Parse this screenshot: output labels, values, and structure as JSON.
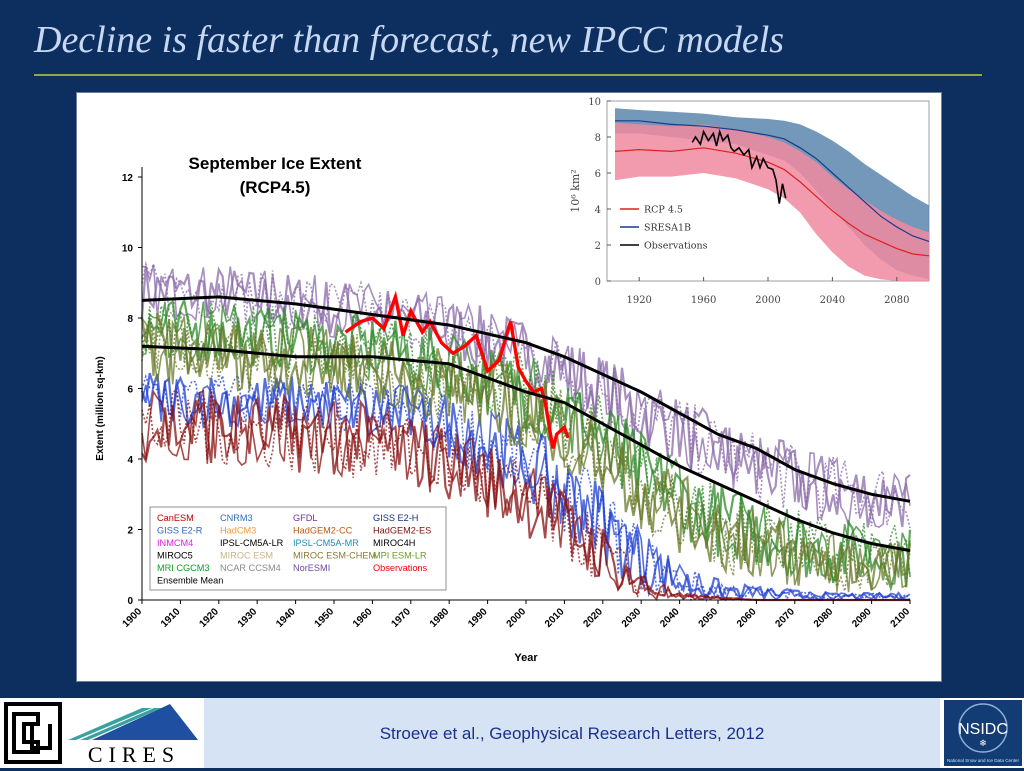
{
  "slide": {
    "title": "Decline is faster than forecast, new IPCC models",
    "citation": "Stroeve et al., Geophysical Research Letters, 2012"
  },
  "logos": {
    "cu": "CU",
    "cires": "CIRES",
    "nsidc": "NSIDC",
    "nsidc_subtitle": "National Snow and Ice Data Center"
  },
  "colors": {
    "background": "#0c2f60",
    "title": "#c8d8f2",
    "rule": "#8fa64a",
    "citation": "#1a2f8c",
    "observations": "#ff0000",
    "ensemble": "#000000"
  },
  "chart_data": [
    {
      "type": "line",
      "title": "September Ice Extent\n(RCP4.5)",
      "xlabel": "Year",
      "ylabel": "Extent (million sq-km)",
      "xlim": [
        1900,
        2100
      ],
      "ylim": [
        0,
        12
      ],
      "xticks": [
        1900,
        1910,
        1920,
        1930,
        1940,
        1950,
        1960,
        1970,
        1980,
        1990,
        2000,
        2010,
        2020,
        2030,
        2040,
        2050,
        2060,
        2070,
        2080,
        2090,
        2100
      ],
      "yticks": [
        0,
        2,
        4,
        6,
        8,
        10,
        12
      ],
      "grid": false,
      "legend_position": "bottom-left",
      "legend": [
        {
          "name": "CanESM",
          "color": "#c00000"
        },
        {
          "name": "CNRM3",
          "color": "#2f6fc0"
        },
        {
          "name": "GFDL",
          "color": "#7a2ea0"
        },
        {
          "name": "GISS E2-H",
          "color": "#1c2f7a"
        },
        {
          "name": "GISS E2-R",
          "color": "#2a5fd0"
        },
        {
          "name": "HadCM3",
          "color": "#f39a3a"
        },
        {
          "name": "HadGEM2-CC",
          "color": "#c05a10"
        },
        {
          "name": "HadGEM2-ES",
          "color": "#7a1010"
        },
        {
          "name": "INMCM4",
          "color": "#e020e0"
        },
        {
          "name": "IPSL-CM5A-LR",
          "color": "#000000"
        },
        {
          "name": "IPSL-CM5A-MR",
          "color": "#1f8fb0"
        },
        {
          "name": "MIROC4H",
          "color": "#000000"
        },
        {
          "name": "MIROC5",
          "color": "#000000"
        },
        {
          "name": "MIROC ESM",
          "color": "#c8b48a"
        },
        {
          "name": "MIROC ESM-CHEM",
          "color": "#8a7a3a"
        },
        {
          "name": "MPI ESM-LR",
          "color": "#6a9a2a"
        },
        {
          "name": "MRI CGCM3",
          "color": "#10a020"
        },
        {
          "name": "NCAR CCSM4",
          "color": "#8a8a8a"
        },
        {
          "name": "NorESMI",
          "color": "#6a4aa0"
        },
        {
          "name": "Observations",
          "color": "#ff0000"
        },
        {
          "name": "Ensemble Mean",
          "color": "#000000"
        }
      ],
      "series": [
        {
          "name": "Observations",
          "color": "#ff0000",
          "x": [
            1953,
            1957,
            1960,
            1963,
            1966,
            1968,
            1970,
            1973,
            1975,
            1978,
            1981,
            1984,
            1987,
            1990,
            1993,
            1996,
            1998,
            2000,
            2002,
            2004,
            2005,
            2007,
            2008,
            2010,
            2011
          ],
          "y": [
            7.6,
            7.9,
            8.0,
            7.7,
            8.6,
            7.5,
            8.2,
            7.6,
            7.9,
            7.3,
            7.0,
            7.2,
            7.5,
            6.5,
            6.8,
            7.9,
            6.6,
            6.2,
            5.9,
            6.0,
            5.6,
            4.3,
            4.7,
            4.9,
            4.6
          ]
        },
        {
          "name": "Ensemble Mean",
          "color": "#000000",
          "x": [
            1900,
            1920,
            1940,
            1960,
            1980,
            2000,
            2010,
            2020,
            2030,
            2040,
            2050,
            2060,
            2070,
            2080,
            2090,
            2100
          ],
          "y": [
            7.2,
            7.1,
            6.9,
            6.9,
            6.7,
            5.9,
            5.6,
            5.0,
            4.4,
            3.8,
            3.3,
            2.8,
            2.3,
            1.9,
            1.6,
            1.4
          ]
        },
        {
          "name": "Ensemble Mean",
          "color": "#000000",
          "x": [
            1900,
            1920,
            1940,
            1960,
            1980,
            2000,
            2010,
            2020,
            2030,
            2040,
            2050,
            2060,
            2070,
            2080,
            2090,
            2100
          ],
          "y": [
            8.5,
            8.6,
            8.4,
            8.1,
            7.8,
            7.3,
            6.9,
            6.4,
            5.9,
            5.3,
            4.7,
            4.3,
            3.7,
            3.3,
            3.0,
            2.8
          ]
        }
      ],
      "spread_bands": [
        {
          "color": "#8a6aa8",
          "upper": [
            9.6,
            9.5,
            9.3,
            9.0,
            8.6,
            8.0,
            7.0,
            6.3,
            5.8,
            5.2,
            4.8,
            4.4,
            4.1,
            3.9
          ],
          "lower": [
            8.0,
            7.9,
            7.6,
            7.3,
            6.8,
            6.0,
            5.0,
            4.3,
            3.8,
            3.2,
            2.8,
            2.4,
            2.1,
            1.9
          ]
        },
        {
          "color": "#2f8a2a",
          "upper": [
            8.6,
            8.5,
            8.3,
            8.1,
            7.6,
            7.0,
            5.8,
            4.8,
            4.0,
            3.4,
            3.0,
            2.6,
            2.3,
            2.1
          ],
          "lower": [
            6.8,
            6.7,
            6.5,
            6.2,
            5.7,
            4.8,
            3.6,
            2.6,
            1.8,
            1.2,
            0.9,
            0.6,
            0.4,
            0.3
          ]
        },
        {
          "color": "#2040d0",
          "upper": [
            6.6,
            6.5,
            6.4,
            6.3,
            5.9,
            5.0,
            3.4,
            2.0,
            1.0,
            0.6,
            0.4,
            0.3,
            0.2,
            0.2
          ],
          "lower": [
            5.0,
            4.9,
            4.8,
            4.6,
            4.0,
            2.8,
            1.0,
            0.2,
            0.0,
            0.0,
            0.0,
            0.0,
            0.0,
            0.0
          ]
        },
        {
          "color": "#8a1010",
          "upper": [
            6.0,
            6.0,
            5.8,
            5.6,
            5.0,
            4.0,
            2.2,
            0.8,
            0.2,
            0.1,
            0.0,
            0.0,
            0.0,
            0.0
          ],
          "lower": [
            3.8,
            3.8,
            3.6,
            3.4,
            2.8,
            1.8,
            0.4,
            0.0,
            0.0,
            0.0,
            0.0,
            0.0,
            0.0,
            0.0
          ]
        },
        {
          "color": "#6a7a2a",
          "upper": [
            8.2,
            8.0,
            7.8,
            7.6,
            7.2,
            6.6,
            5.4,
            4.4,
            3.6,
            3.0,
            2.6,
            2.2,
            1.9,
            1.7
          ],
          "lower": [
            6.2,
            6.0,
            5.8,
            5.6,
            5.0,
            4.2,
            3.0,
            2.0,
            1.3,
            0.8,
            0.5,
            0.3,
            0.2,
            0.2
          ]
        }
      ],
      "spread_years": [
        1900,
        1920,
        1940,
        1960,
        1980,
        2000,
        2020,
        2030,
        2040,
        2050,
        2060,
        2070,
        2080,
        2100
      ]
    },
    {
      "type": "line",
      "title": "",
      "ylabel": "10⁶ km²",
      "xlim": [
        1900,
        2100
      ],
      "ylim": [
        0,
        10
      ],
      "xticks": [
        1920,
        1960,
        2000,
        2040,
        2080
      ],
      "yticks": [
        0,
        2,
        4,
        6,
        8,
        10
      ],
      "legend_position": "bottom-left",
      "series": [
        {
          "name": "RCP 4.5",
          "color": "#e02020",
          "band_color": "#f08aa0",
          "x": [
            1905,
            1920,
            1940,
            1960,
            1980,
            2000,
            2010,
            2020,
            2030,
            2040,
            2050,
            2060,
            2070,
            2080,
            2090,
            2100
          ],
          "y": [
            7.2,
            7.3,
            7.2,
            7.4,
            7.1,
            6.6,
            6.2,
            5.5,
            4.7,
            3.9,
            3.2,
            2.6,
            2.2,
            1.8,
            1.5,
            1.4
          ],
          "upper": [
            8.8,
            8.7,
            8.6,
            8.7,
            8.4,
            8.0,
            7.7,
            7.2,
            6.6,
            5.8,
            5.1,
            4.5,
            3.9,
            3.4,
            3.0,
            2.7
          ],
          "lower": [
            5.6,
            5.8,
            5.8,
            6.0,
            5.7,
            5.1,
            4.6,
            3.8,
            2.6,
            1.6,
            0.8,
            0.3,
            0.1,
            0.0,
            0.0,
            0.0
          ]
        },
        {
          "name": "SRESA1B",
          "color": "#1a3a8a",
          "band_color": "#5a86ad",
          "x": [
            1905,
            1920,
            1940,
            1960,
            1980,
            2000,
            2010,
            2020,
            2030,
            2040,
            2050,
            2060,
            2070,
            2080,
            2090,
            2100
          ],
          "y": [
            8.9,
            8.9,
            8.7,
            8.6,
            8.4,
            8.1,
            7.9,
            7.4,
            6.8,
            6.0,
            5.2,
            4.4,
            3.6,
            3.0,
            2.5,
            2.2
          ],
          "upper": [
            9.6,
            9.5,
            9.4,
            9.3,
            9.1,
            9.0,
            8.9,
            8.7,
            8.3,
            7.8,
            7.2,
            6.5,
            5.9,
            5.3,
            4.7,
            4.2
          ],
          "lower": [
            8.2,
            8.2,
            8.0,
            7.8,
            7.6,
            7.0,
            6.7,
            6.0,
            5.0,
            4.0,
            3.0,
            2.0,
            1.2,
            0.6,
            0.3,
            0.1
          ]
        },
        {
          "name": "Observations",
          "color": "#000000",
          "x": [
            1953,
            1955,
            1958,
            1960,
            1963,
            1966,
            1968,
            1970,
            1972,
            1975,
            1977,
            1979,
            1982,
            1985,
            1988,
            1990,
            1993,
            1995,
            1997,
            2000,
            2003,
            2005,
            2007,
            2009,
            2011
          ],
          "y": [
            7.7,
            8.0,
            7.6,
            8.3,
            7.8,
            8.2,
            7.5,
            8.3,
            7.8,
            8.1,
            7.4,
            7.2,
            7.4,
            7.0,
            7.3,
            6.3,
            6.9,
            6.3,
            6.8,
            6.3,
            6.2,
            5.6,
            4.3,
            5.4,
            4.6
          ]
        }
      ]
    }
  ]
}
